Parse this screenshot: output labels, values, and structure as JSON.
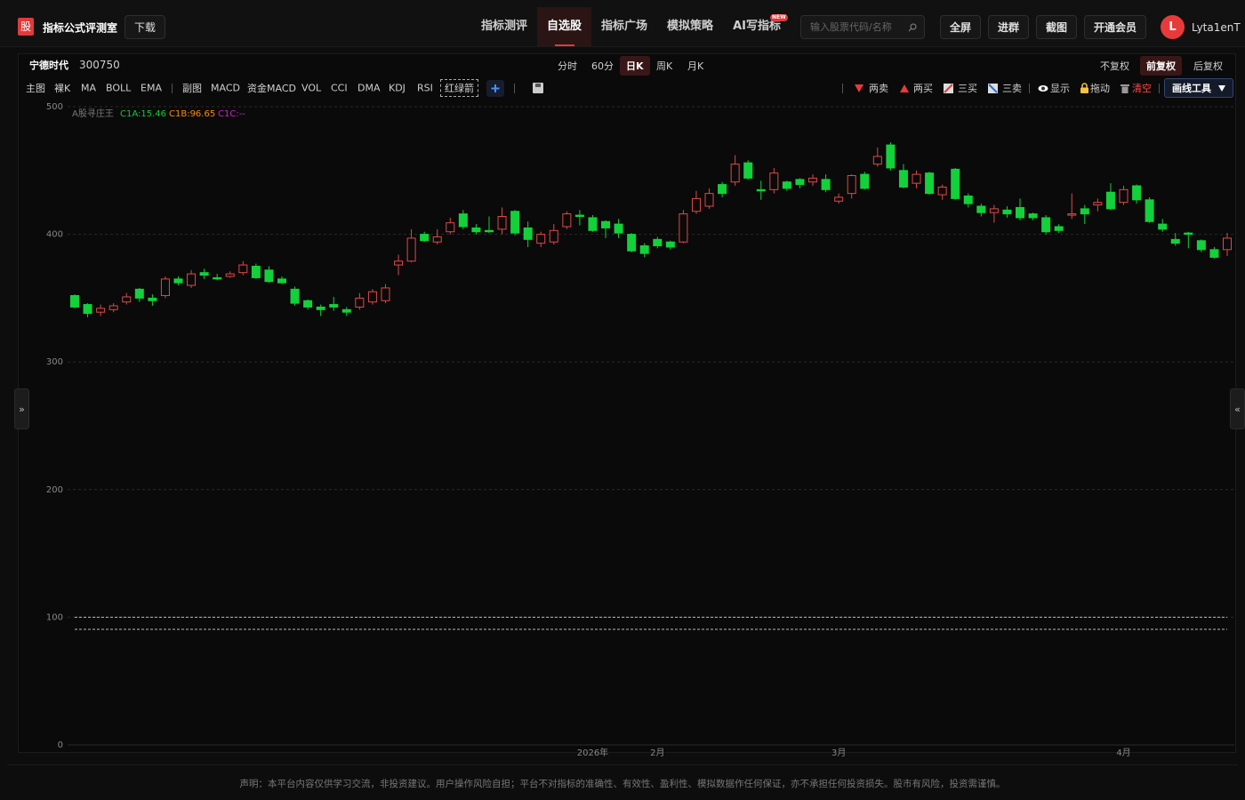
{
  "header": {
    "logo": "股",
    "app_name": "指标公式评测室",
    "download": "下载",
    "nav": [
      "指标测评",
      "自选股",
      "指标广场",
      "模拟策略",
      "AI写指标"
    ],
    "active_nav": 1,
    "badge": "NEW",
    "search_placeholder": "输入股票代码/名称",
    "buttons": [
      "全屏",
      "进群",
      "截图",
      "开通会员"
    ],
    "avatar": "L",
    "username": "Lyta1enT"
  },
  "stock": {
    "name": "宁德时代",
    "code": "300750",
    "periods": [
      "分时",
      "60分",
      "日K",
      "周K",
      "月K"
    ],
    "active_period": 2,
    "adjust": [
      "不复权",
      "前复权",
      "后复权"
    ],
    "active_adjust": 1
  },
  "toolbar": {
    "main_label": "主图",
    "main": [
      "裸K",
      "MA",
      "BOLL",
      "EMA"
    ],
    "sub_label": "副图",
    "sub": [
      "MACD",
      "资金MACD",
      "VOL",
      "CCI",
      "DMA",
      "KDJ",
      "RSI",
      "红绿箭"
    ],
    "signals": [
      "两卖",
      "两买",
      "三买",
      "三卖"
    ],
    "show": "显示",
    "drag": "拖动",
    "clear": "清空",
    "draw_tools": "画线工具"
  },
  "chart_data": {
    "type": "candlestick",
    "indicator": {
      "name": "A股寻庄王",
      "lines": [
        "C1A:15.46",
        "C1B:96.65",
        "C1C:--"
      ],
      "colors": [
        "#16c83a",
        "#ff8a00",
        "#d020d0"
      ]
    },
    "categories": [
      null,
      null,
      null,
      null,
      null,
      null,
      null,
      null,
      null,
      null,
      null,
      null,
      null,
      null,
      null,
      null,
      null,
      null,
      null,
      null,
      null,
      null,
      null,
      null,
      null,
      null,
      null,
      null,
      null,
      null,
      null,
      null,
      null,
      null,
      null,
      null,
      null,
      null,
      null,
      null,
      "2026年",
      null,
      null,
      null,
      null,
      "2月",
      null,
      null,
      null,
      null,
      null,
      null,
      null,
      null,
      null,
      null,
      null,
      null,
      null,
      "3月",
      null,
      null,
      null,
      null,
      null,
      null,
      null,
      null,
      null,
      null,
      null,
      null,
      null,
      null,
      null,
      null,
      null,
      null,
      null,
      null,
      null,
      "4月",
      null,
      null,
      null,
      null,
      null,
      null,
      null,
      null
    ],
    "open": [
      352,
      345,
      339,
      341,
      347,
      357,
      350,
      352,
      365,
      360,
      370,
      366,
      367,
      370,
      375,
      372,
      365,
      357,
      348,
      343,
      345,
      341,
      343,
      347,
      348,
      376,
      379,
      400,
      394,
      402,
      416,
      405,
      403,
      404,
      418,
      405,
      393,
      394,
      406,
      415,
      413,
      410,
      408,
      400,
      391,
      396,
      394,
      394,
      418,
      422,
      439,
      441,
      456,
      435,
      435,
      441,
      443,
      441,
      443,
      426,
      432,
      447,
      455,
      470,
      450,
      440,
      448,
      431,
      451,
      430,
      422,
      417,
      419,
      421,
      416,
      413,
      406,
      415,
      420,
      423,
      433,
      425,
      438,
      427,
      408,
      396,
      401,
      395,
      388,
      388
    ],
    "high": [
      353,
      346,
      345,
      346,
      354,
      358,
      353,
      367,
      367,
      372,
      373,
      369,
      371,
      379,
      377,
      375,
      367,
      359,
      349,
      345,
      351,
      343,
      354,
      357,
      361,
      384,
      404,
      402,
      404,
      413,
      419,
      408,
      414,
      421,
      419,
      410,
      402,
      408,
      418,
      419,
      415,
      411,
      412,
      401,
      393,
      398,
      395,
      419,
      434,
      436,
      441,
      462,
      458,
      442,
      452,
      442,
      444,
      447,
      447,
      432,
      447,
      449,
      468,
      472,
      455,
      450,
      449,
      439,
      452,
      432,
      424,
      423,
      422,
      428,
      417,
      415,
      408,
      432,
      423,
      428,
      440,
      438,
      439,
      429,
      412,
      401,
      402,
      396,
      390,
      401
    ],
    "low": [
      342,
      335,
      336,
      339,
      345,
      347,
      344,
      350,
      360,
      358,
      365,
      364,
      366,
      368,
      365,
      362,
      361,
      344,
      341,
      336,
      340,
      336,
      341,
      345,
      346,
      368,
      378,
      394,
      392,
      400,
      404,
      400,
      401,
      400,
      399,
      390,
      390,
      392,
      404,
      407,
      402,
      397,
      397,
      386,
      382,
      389,
      388,
      393,
      416,
      420,
      429,
      438,
      443,
      427,
      432,
      434,
      436,
      438,
      433,
      424,
      428,
      435,
      453,
      450,
      436,
      436,
      431,
      427,
      427,
      421,
      414,
      409,
      413,
      411,
      411,
      400,
      401,
      412,
      408,
      418,
      419,
      423,
      424,
      409,
      402,
      391,
      389,
      386,
      381,
      383
    ],
    "close": [
      343,
      338,
      342,
      344,
      351,
      350,
      348,
      365,
      362,
      369,
      368,
      365,
      369,
      376,
      366,
      363,
      362,
      346,
      343,
      341,
      343,
      339,
      350,
      355,
      358,
      379,
      397,
      395,
      398,
      409,
      406,
      402,
      402,
      414,
      401,
      396,
      400,
      403,
      416,
      414,
      403,
      405,
      401,
      387,
      385,
      391,
      390,
      416,
      428,
      432,
      432,
      455,
      444,
      434,
      448,
      436,
      439,
      444,
      435,
      429,
      446,
      436,
      461,
      452,
      437,
      447,
      432,
      437,
      428,
      424,
      417,
      420,
      416,
      413,
      413,
      402,
      403,
      416,
      416,
      425,
      420,
      435,
      427,
      410,
      404,
      393,
      400,
      388,
      382,
      397
    ],
    "ylim": [
      0,
      500
    ],
    "yticks": [
      0,
      100,
      200,
      300,
      400,
      500
    ],
    "grid": true,
    "up_color": "#e04848",
    "down_color": "#12d13a",
    "levels": [
      100,
      90.5
    ]
  },
  "footer": {
    "disclaimer": "声明：本平台内容仅供学习交流，非投资建议。用户操作风险自担；平台不对指标的准确性、有效性、盈利性、模拟数据作任何保证，亦不承担任何投资损失。股市有风险，投资需谨慎。"
  }
}
